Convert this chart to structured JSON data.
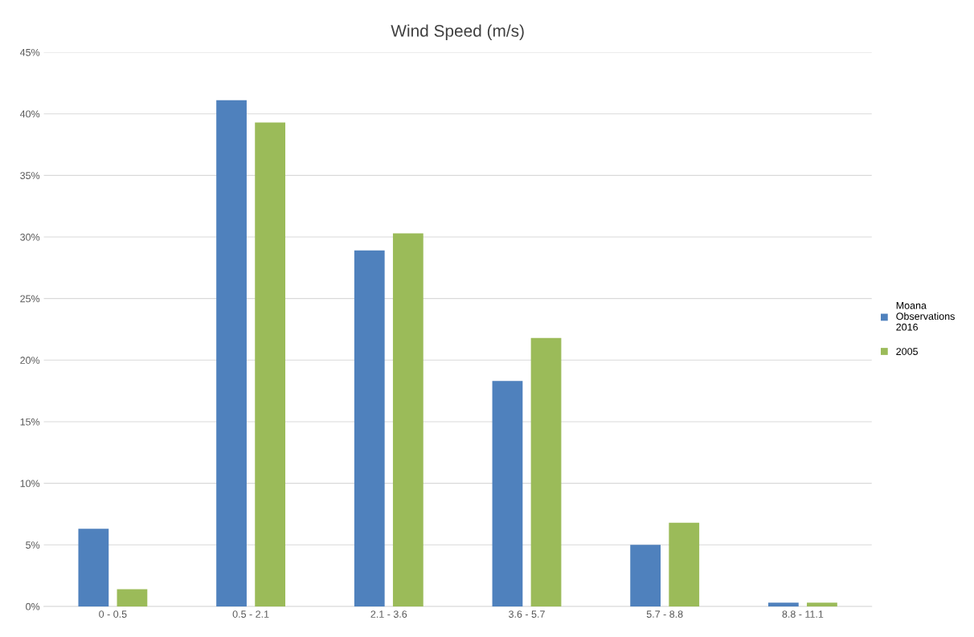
{
  "chart_data": {
    "type": "bar",
    "title": "Wind Speed (m/s)",
    "categories": [
      "0 - 0.5",
      "0.5 - 2.1",
      "2.1 - 3.6",
      "3.6 - 5.7",
      "5.7 - 8.8",
      "8.8 - 11.1"
    ],
    "series": [
      {
        "name": "Moana Observations 2016",
        "color": "#4f81bd",
        "values": [
          6.3,
          41.1,
          28.9,
          18.3,
          5.0,
          0.3
        ]
      },
      {
        "name": "2005",
        "color": "#9bbb59",
        "values": [
          1.4,
          39.3,
          30.3,
          21.8,
          6.8,
          0.3
        ]
      }
    ],
    "ylim": [
      0,
      45
    ],
    "yticks": [
      {
        "value": 0,
        "label": "0%"
      },
      {
        "value": 5,
        "label": "5%"
      },
      {
        "value": 10,
        "label": "10%"
      },
      {
        "value": 15,
        "label": "15%"
      },
      {
        "value": 20,
        "label": "20%"
      },
      {
        "value": 25,
        "label": "25%"
      },
      {
        "value": 30,
        "label": "30%"
      },
      {
        "value": 35,
        "label": "35%"
      },
      {
        "value": 40,
        "label": "40%"
      },
      {
        "value": 45,
        "label": "45%"
      }
    ],
    "grid": "y",
    "legend": "right"
  }
}
